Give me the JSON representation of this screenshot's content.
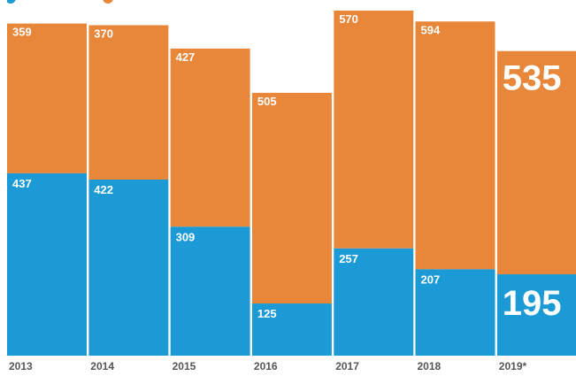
{
  "chart_data": {
    "type": "bar",
    "stacked": true,
    "categories": [
      "2013",
      "2014",
      "2015",
      "2016",
      "2017",
      "2018",
      "2019*"
    ],
    "series": [
      {
        "key": "bottom",
        "values": [
          437,
          422,
          309,
          125,
          257,
          207,
          195
        ],
        "color": "#1c9ad6"
      },
      {
        "key": "top",
        "values": [
          359,
          370,
          427,
          505,
          570,
          594,
          535
        ],
        "color": "#e8873a"
      }
    ],
    "labels_top": [
      "359",
      "370",
      "427",
      "505",
      "570",
      "594",
      "535"
    ],
    "labels_bottom": [
      "437",
      "422",
      "309",
      "125",
      "257",
      "207",
      "195"
    ],
    "highlighted_category": "2019*",
    "legend": {
      "placement": "top-left",
      "colors": [
        "#1c9ad6",
        "#e8873a"
      ]
    },
    "grid": false
  }
}
